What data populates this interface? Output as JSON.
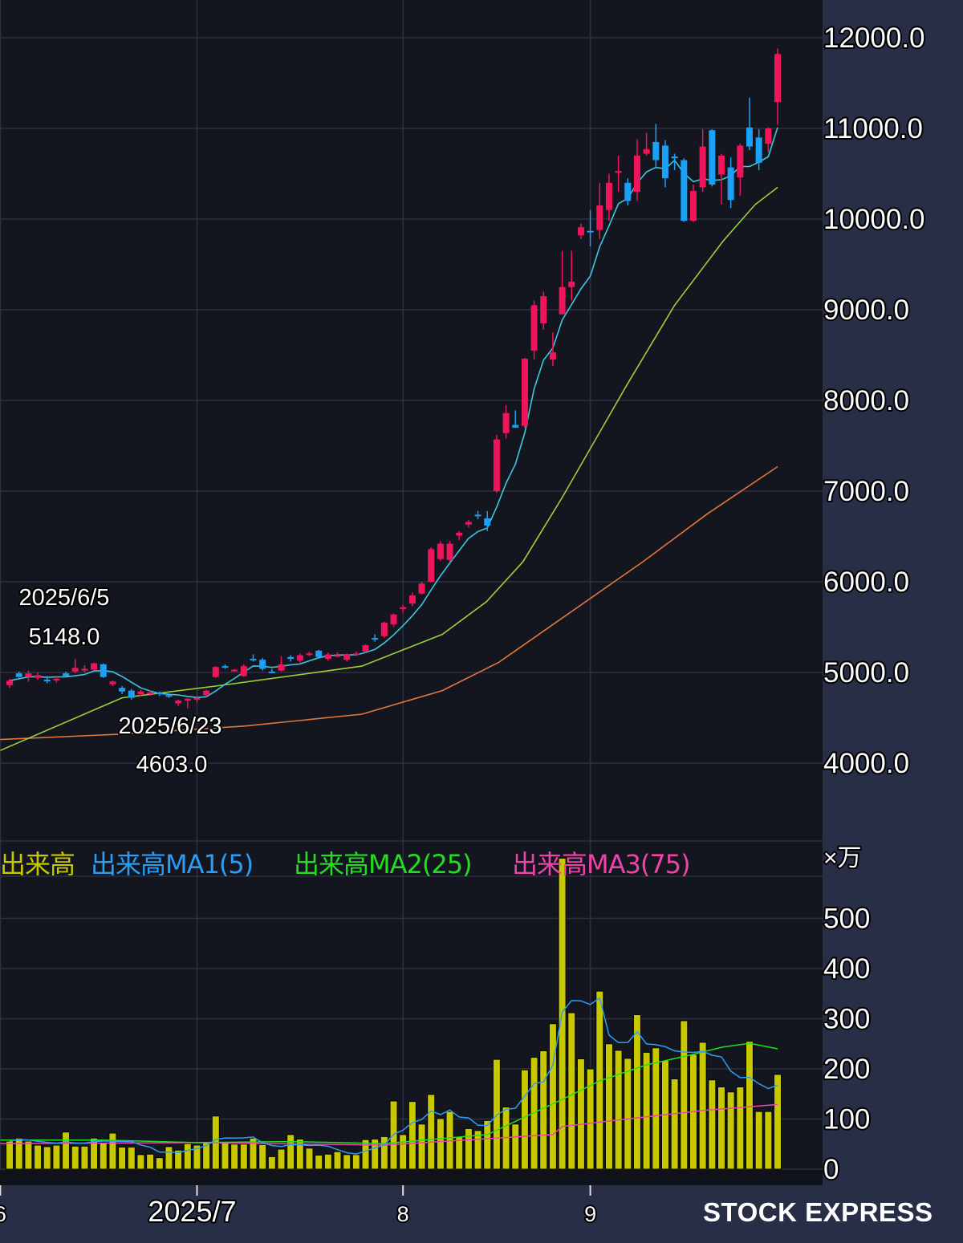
{
  "chart_data": {
    "type": "candlestick",
    "price_axis": {
      "ticks": [
        "12000.0",
        "11000.0",
        "10000.0",
        "9000.0",
        "8000.0",
        "7000.0",
        "6000.0",
        "5000.0",
        "4000.0"
      ],
      "values": [
        12000,
        11000,
        10000,
        9000,
        8000,
        7000,
        6000,
        5000,
        4000
      ],
      "ylim": [
        3150,
        12420
      ]
    },
    "volume_axis": {
      "unit": "×万",
      "ticks": [
        "500",
        "400",
        "300",
        "200",
        "100",
        "0"
      ],
      "values": [
        500,
        400,
        300,
        200,
        100,
        0
      ],
      "ylim": [
        0,
        650
      ]
    },
    "x_ticks": [
      {
        "label": "6",
        "index": -1
      },
      {
        "label": "2025/7",
        "index": 20
      },
      {
        "label": "8",
        "index": 42
      },
      {
        "label": "9",
        "index": 62
      }
    ],
    "annotations": [
      {
        "date": "2025/6/5",
        "value": "5148.0",
        "type": "high",
        "index": 7
      },
      {
        "date": "2025/6/23",
        "value": "4603.0",
        "type": "low",
        "index": 19
      }
    ],
    "colors": {
      "up": "#f0145a",
      "down": "#1aa0f5",
      "ma1": "#3ec6e0",
      "ma2": "#9bd23a",
      "ma3": "#e0783a",
      "volume": "#c8c800",
      "vol_ma1": "#2a9df4",
      "vol_ma2": "#22dd22",
      "vol_ma3": "#ee44aa"
    },
    "ohlc": [
      [
        4860,
        4930,
        4830,
        4910
      ],
      [
        4990,
        5010,
        4930,
        4950
      ],
      [
        4950,
        5020,
        4900,
        4990
      ],
      [
        4940,
        5000,
        4920,
        4970
      ],
      [
        4920,
        4960,
        4880,
        4910
      ],
      [
        4920,
        4960,
        4890,
        4930
      ],
      [
        4990,
        5010,
        4950,
        4960
      ],
      [
        5010,
        5148,
        4990,
        5050
      ],
      [
        5020,
        5080,
        5000,
        5040
      ],
      [
        5030,
        5110,
        5020,
        5100
      ],
      [
        5090,
        5100,
        4940,
        4950
      ],
      [
        4870,
        4910,
        4850,
        4900
      ],
      [
        4830,
        4850,
        4760,
        4790
      ],
      [
        4800,
        4820,
        4700,
        4720
      ],
      [
        4760,
        4810,
        4740,
        4790
      ],
      [
        4770,
        4800,
        4740,
        4780
      ],
      [
        4780,
        4790,
        4740,
        4760
      ],
      [
        4750,
        4770,
        4720,
        4740
      ],
      [
        4660,
        4700,
        4630,
        4690
      ],
      [
        4690,
        4720,
        4603,
        4710
      ],
      [
        4700,
        4740,
        4670,
        4720
      ],
      [
        4750,
        4810,
        4730,
        4800
      ],
      [
        4950,
        5070,
        4940,
        5060
      ],
      [
        5070,
        5090,
        5040,
        5060
      ],
      [
        5020,
        5040,
        5010,
        5030
      ],
      [
        4960,
        5090,
        4950,
        5070
      ],
      [
        5150,
        5200,
        5120,
        5140
      ],
      [
        5140,
        5160,
        5020,
        5040
      ],
      [
        5010,
        5040,
        4990,
        5000
      ],
      [
        5020,
        5180,
        5010,
        5090
      ],
      [
        5170,
        5190,
        5120,
        5150
      ],
      [
        5130,
        5210,
        5110,
        5190
      ],
      [
        5200,
        5230,
        5180,
        5210
      ],
      [
        5240,
        5250,
        5160,
        5170
      ],
      [
        5150,
        5220,
        5130,
        5200
      ],
      [
        5180,
        5220,
        5170,
        5190
      ],
      [
        5140,
        5210,
        5120,
        5200
      ],
      [
        5200,
        5230,
        5190,
        5210
      ],
      [
        5230,
        5310,
        5220,
        5300
      ],
      [
        5380,
        5420,
        5340,
        5370
      ],
      [
        5400,
        5560,
        5380,
        5550
      ],
      [
        5530,
        5650,
        5500,
        5640
      ],
      [
        5700,
        5740,
        5660,
        5720
      ],
      [
        5760,
        5880,
        5730,
        5850
      ],
      [
        5870,
        6000,
        5860,
        5980
      ],
      [
        6000,
        6380,
        5990,
        6360
      ],
      [
        6250,
        6450,
        6230,
        6420
      ],
      [
        6240,
        6450,
        6220,
        6420
      ],
      [
        6510,
        6560,
        6460,
        6540
      ],
      [
        6630,
        6680,
        6600,
        6660
      ],
      [
        6740,
        6780,
        6690,
        6730
      ],
      [
        6700,
        6780,
        6560,
        6620
      ],
      [
        7000,
        7620,
        6980,
        7570
      ],
      [
        7640,
        7950,
        7580,
        7860
      ],
      [
        7730,
        7890,
        7700,
        7700
      ],
      [
        7720,
        8470,
        7700,
        8460
      ],
      [
        8550,
        9100,
        8450,
        9050
      ],
      [
        8850,
        9200,
        8780,
        9150
      ],
      [
        8450,
        8750,
        8380,
        8530
      ],
      [
        8950,
        9650,
        8950,
        9250
      ],
      [
        9250,
        9650,
        9100,
        9310
      ],
      [
        9820,
        9950,
        9780,
        9910
      ],
      [
        9870,
        10100,
        9700,
        9860
      ],
      [
        9880,
        10400,
        9780,
        10150
      ],
      [
        10100,
        10500,
        9980,
        10400
      ],
      [
        10510,
        10700,
        10300,
        10530
      ],
      [
        10400,
        10450,
        10150,
        10200
      ],
      [
        10300,
        10880,
        10200,
        10700
      ],
      [
        10720,
        10950,
        10700,
        10770
      ],
      [
        10850,
        11050,
        10560,
        10650
      ],
      [
        10810,
        10870,
        10350,
        10450
      ],
      [
        10690,
        10720,
        10540,
        10670
      ],
      [
        10650,
        10670,
        9970,
        9980
      ],
      [
        9980,
        10380,
        9970,
        10310
      ],
      [
        10350,
        10990,
        10300,
        10800
      ],
      [
        10980,
        10990,
        10360,
        10380
      ],
      [
        10490,
        10720,
        10160,
        10700
      ],
      [
        10570,
        10680,
        10120,
        10210
      ],
      [
        10460,
        10830,
        10260,
        10810
      ],
      [
        11010,
        11340,
        10760,
        10800
      ],
      [
        10900,
        10990,
        10540,
        10620
      ],
      [
        10830,
        11010,
        10740,
        11000
      ],
      [
        11290,
        11880,
        11040,
        11820
      ]
    ],
    "volume": [
      56,
      62,
      56,
      48,
      45,
      48,
      74,
      46,
      46,
      62,
      53,
      72,
      44,
      44,
      29,
      30,
      23,
      45,
      38,
      51,
      48,
      53,
      106,
      53,
      50,
      50,
      62,
      49,
      25,
      40,
      69,
      60,
      42,
      28,
      30,
      35,
      29,
      29,
      59,
      60,
      65,
      136,
      69,
      135,
      90,
      149,
      101,
      115,
      65,
      81,
      77,
      97,
      219,
      124,
      90,
      198,
      223,
      236,
      290,
      620,
      312,
      220,
      200,
      355,
      250,
      237,
      221,
      308,
      233,
      242,
      217,
      180,
      296,
      229,
      253,
      178,
      164,
      154,
      164,
      255,
      115,
      115,
      189
    ],
    "price_ma2_points": [
      [
        -1,
        4140
      ],
      [
        12,
        4720
      ],
      [
        22,
        4850
      ],
      [
        37.6,
        5070
      ],
      [
        46.2,
        5420
      ],
      [
        50.9,
        5780
      ],
      [
        54.8,
        6220
      ],
      [
        59,
        6930
      ],
      [
        65.9,
        8170
      ],
      [
        71,
        9050
      ],
      [
        76.2,
        9760
      ],
      [
        79.6,
        10160
      ],
      [
        82,
        10350
      ]
    ],
    "price_ma3_points": [
      [
        -1,
        4260
      ],
      [
        12,
        4320
      ],
      [
        25.2,
        4410
      ],
      [
        37.6,
        4540
      ],
      [
        46.2,
        4800
      ],
      [
        52.2,
        5110
      ],
      [
        59,
        5600
      ],
      [
        67.6,
        6220
      ],
      [
        74.5,
        6750
      ],
      [
        82,
        7270
      ]
    ],
    "vol_ma2_points": [
      [
        -1,
        58
      ],
      [
        10,
        58
      ],
      [
        20,
        53
      ],
      [
        30,
        55
      ],
      [
        40,
        51
      ],
      [
        51,
        69
      ],
      [
        59,
        139
      ],
      [
        63,
        176
      ],
      [
        68,
        208
      ],
      [
        73,
        229
      ],
      [
        76,
        243
      ],
      [
        79,
        251
      ],
      [
        82,
        240
      ]
    ],
    "vol_ma3_points": [
      [
        -1,
        51
      ],
      [
        20,
        53
      ],
      [
        40,
        48
      ],
      [
        58,
        69
      ],
      [
        59,
        85
      ],
      [
        64,
        96
      ],
      [
        74,
        117
      ],
      [
        82,
        129
      ]
    ],
    "volume_legend": [
      "出来高",
      "出来高MA1(5)",
      "出来高MA2(25)",
      "出来高MA3(75)"
    ]
  },
  "brand": "STOCK EXPRESS"
}
